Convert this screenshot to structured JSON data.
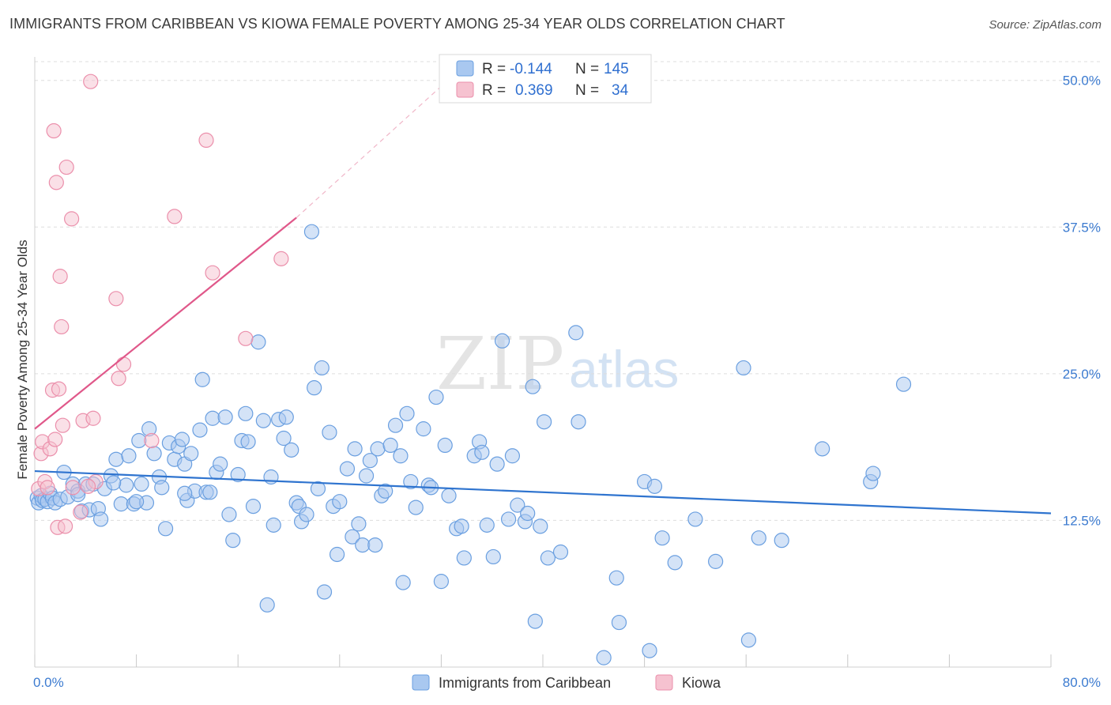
{
  "header": {
    "title": "IMMIGRANTS FROM CARIBBEAN VS KIOWA FEMALE POVERTY AMONG 25-34 YEAR OLDS CORRELATION CHART",
    "source": "Source: ZipAtlas.com"
  },
  "watermark": {
    "zip": "ZIP",
    "atlas": "atlas"
  },
  "colors": {
    "blue_fill": "#a9c8f0",
    "blue_stroke": "#6a9fe0",
    "blue_line": "#2f74cf",
    "pink_fill": "#f6c2d0",
    "pink_stroke": "#eb8fab",
    "pink_line": "#e0588a",
    "axis_text": "#3c7bd0",
    "grid": "#dddddd"
  },
  "legend": {
    "rows": [
      {
        "r_label": "R =",
        "r_value": "-0.144",
        "n_label": "N =",
        "n_value": "145"
      },
      {
        "r_label": "R =",
        "r_value": "0.369",
        "n_label": "N =",
        "n_value": "34"
      }
    ]
  },
  "chart_data": {
    "type": "scatter",
    "title": "IMMIGRANTS FROM CARIBBEAN VS KIOWA FEMALE POVERTY AMONG 25-34 YEAR OLDS CORRELATION CHART",
    "xlabel": "",
    "ylabel": "Female Poverty Among 25-34 Year Olds",
    "xlim": [
      0,
      80
    ],
    "ylim": [
      0,
      52
    ],
    "x_tick_labels": [
      {
        "value": 0,
        "label": "0.0%"
      },
      {
        "value": 80,
        "label": "80.0%"
      }
    ],
    "y_ticks": [
      {
        "value": 12.5,
        "label": "12.5%"
      },
      {
        "value": 25,
        "label": "25.0%"
      },
      {
        "value": 37.5,
        "label": "37.5%"
      },
      {
        "value": 50,
        "label": "50.0%"
      }
    ],
    "x_minor_ticks": [
      0,
      8,
      16,
      24,
      32,
      40,
      48,
      56,
      64,
      72,
      80
    ],
    "grid": true,
    "legend_position": "top-center",
    "series": [
      {
        "name": "Immigrants from Caribbean",
        "color": "blue",
        "r": -0.144,
        "n": 145,
        "trend": {
          "x": [
            0,
            80
          ],
          "y": [
            16.7,
            13.1
          ]
        },
        "points": [
          [
            0.2,
            14.4
          ],
          [
            0.3,
            14.0
          ],
          [
            0.5,
            14.6
          ],
          [
            0.6,
            14.2
          ],
          [
            0.8,
            14.3
          ],
          [
            1.0,
            14.1
          ],
          [
            1.2,
            14.8
          ],
          [
            1.4,
            14.4
          ],
          [
            1.6,
            14.0
          ],
          [
            2.0,
            14.3
          ],
          [
            2.3,
            16.6
          ],
          [
            2.6,
            14.5
          ],
          [
            3.0,
            15.6
          ],
          [
            3.4,
            15.0
          ],
          [
            3.7,
            13.3
          ],
          [
            4.0,
            15.6
          ],
          [
            4.3,
            13.4
          ],
          [
            4.6,
            15.6
          ],
          [
            5.0,
            13.5
          ],
          [
            5.2,
            12.6
          ],
          [
            5.5,
            15.2
          ],
          [
            6.0,
            16.3
          ],
          [
            6.4,
            17.7
          ],
          [
            6.8,
            13.9
          ],
          [
            7.2,
            15.5
          ],
          [
            7.4,
            18.0
          ],
          [
            7.8,
            13.9
          ],
          [
            8.2,
            19.3
          ],
          [
            8.4,
            15.6
          ],
          [
            8.8,
            14.0
          ],
          [
            9.0,
            20.3
          ],
          [
            9.4,
            18.2
          ],
          [
            9.8,
            16.2
          ],
          [
            10.0,
            15.3
          ],
          [
            10.3,
            11.8
          ],
          [
            10.6,
            19.1
          ],
          [
            11.0,
            17.7
          ],
          [
            11.3,
            18.8
          ],
          [
            11.6,
            19.4
          ],
          [
            11.8,
            17.3
          ],
          [
            12.0,
            14.2
          ],
          [
            12.3,
            18.2
          ],
          [
            12.6,
            15.0
          ],
          [
            13.0,
            20.2
          ],
          [
            13.2,
            24.5
          ],
          [
            13.5,
            14.9
          ],
          [
            13.8,
            14.9
          ],
          [
            14.0,
            21.2
          ],
          [
            14.3,
            16.6
          ],
          [
            14.6,
            17.3
          ],
          [
            15.0,
            21.3
          ],
          [
            15.3,
            13.0
          ],
          [
            15.6,
            10.8
          ],
          [
            16.0,
            16.4
          ],
          [
            16.3,
            19.3
          ],
          [
            16.6,
            21.6
          ],
          [
            16.8,
            19.2
          ],
          [
            17.2,
            13.7
          ],
          [
            17.6,
            27.7
          ],
          [
            18.0,
            21.0
          ],
          [
            18.3,
            5.3
          ],
          [
            18.6,
            16.2
          ],
          [
            18.8,
            12.1
          ],
          [
            19.2,
            21.1
          ],
          [
            19.6,
            19.5
          ],
          [
            19.8,
            21.3
          ],
          [
            20.2,
            18.5
          ],
          [
            20.6,
            14.0
          ],
          [
            20.8,
            13.7
          ],
          [
            21.0,
            12.4
          ],
          [
            21.4,
            13.0
          ],
          [
            21.8,
            37.1
          ],
          [
            22.0,
            23.8
          ],
          [
            22.3,
            15.2
          ],
          [
            22.6,
            25.5
          ],
          [
            22.8,
            6.4
          ],
          [
            23.2,
            20.0
          ],
          [
            23.5,
            13.7
          ],
          [
            23.8,
            9.6
          ],
          [
            24.0,
            14.1
          ],
          [
            24.6,
            16.9
          ],
          [
            25.0,
            11.1
          ],
          [
            25.2,
            18.6
          ],
          [
            25.5,
            12.2
          ],
          [
            25.8,
            10.4
          ],
          [
            26.1,
            16.3
          ],
          [
            26.4,
            17.6
          ],
          [
            26.8,
            10.4
          ],
          [
            27.0,
            18.6
          ],
          [
            27.3,
            14.6
          ],
          [
            27.6,
            15.0
          ],
          [
            28.0,
            18.9
          ],
          [
            28.4,
            20.6
          ],
          [
            28.8,
            18.0
          ],
          [
            29.0,
            7.2
          ],
          [
            29.3,
            21.6
          ],
          [
            29.6,
            15.8
          ],
          [
            30.0,
            13.6
          ],
          [
            30.6,
            20.3
          ],
          [
            31.0,
            15.5
          ],
          [
            31.2,
            15.3
          ],
          [
            31.6,
            23.0
          ],
          [
            32.0,
            7.3
          ],
          [
            32.3,
            18.9
          ],
          [
            32.6,
            14.6
          ],
          [
            33.2,
            11.8
          ],
          [
            33.6,
            12.0
          ],
          [
            33.8,
            9.3
          ],
          [
            34.6,
            18.0
          ],
          [
            35.0,
            19.2
          ],
          [
            35.2,
            18.3
          ],
          [
            35.6,
            12.1
          ],
          [
            36.1,
            9.4
          ],
          [
            36.4,
            17.3
          ],
          [
            36.8,
            27.8
          ],
          [
            37.3,
            12.6
          ],
          [
            37.6,
            18.0
          ],
          [
            38.0,
            13.8
          ],
          [
            38.6,
            12.4
          ],
          [
            38.8,
            13.1
          ],
          [
            39.2,
            23.9
          ],
          [
            39.4,
            3.9
          ],
          [
            39.8,
            12.0
          ],
          [
            40.1,
            20.9
          ],
          [
            40.4,
            9.3
          ],
          [
            41.4,
            9.8
          ],
          [
            42.6,
            28.5
          ],
          [
            42.8,
            20.9
          ],
          [
            45.8,
            7.6
          ],
          [
            46.0,
            3.8
          ],
          [
            48.0,
            15.8
          ],
          [
            48.4,
            1.4
          ],
          [
            48.8,
            15.4
          ],
          [
            49.4,
            11.0
          ],
          [
            50.4,
            8.9
          ],
          [
            52.0,
            12.6
          ],
          [
            53.6,
            9.0
          ],
          [
            55.8,
            25.5
          ],
          [
            56.2,
            2.3
          ],
          [
            57.0,
            11.0
          ],
          [
            58.8,
            10.8
          ],
          [
            62.0,
            18.6
          ],
          [
            65.8,
            15.8
          ],
          [
            66.0,
            16.5
          ],
          [
            68.4,
            24.1
          ],
          [
            44.8,
            0.8
          ],
          [
            11.8,
            14.8
          ],
          [
            8.0,
            14.1
          ],
          [
            6.2,
            15.7
          ],
          [
            3.4,
            14.7
          ]
        ]
      },
      {
        "name": "Kiowa",
        "color": "pink",
        "r": 0.369,
        "n": 34,
        "trend": {
          "x": [
            0,
            20.6
          ],
          "y": [
            20.3,
            38.3
          ],
          "dashed_to": {
            "x": 32,
            "y": 49.5
          }
        },
        "points": [
          [
            0.3,
            15.2
          ],
          [
            0.5,
            18.2
          ],
          [
            0.6,
            19.2
          ],
          [
            0.8,
            15.8
          ],
          [
            1.0,
            15.3
          ],
          [
            1.2,
            18.6
          ],
          [
            1.4,
            23.6
          ],
          [
            1.5,
            45.7
          ],
          [
            1.6,
            19.4
          ],
          [
            1.7,
            41.3
          ],
          [
            1.8,
            11.9
          ],
          [
            1.9,
            23.7
          ],
          [
            2.0,
            33.3
          ],
          [
            2.1,
            29.0
          ],
          [
            2.2,
            20.6
          ],
          [
            2.4,
            12.0
          ],
          [
            2.5,
            42.6
          ],
          [
            2.9,
            38.2
          ],
          [
            3.0,
            15.3
          ],
          [
            3.6,
            13.2
          ],
          [
            3.8,
            21.0
          ],
          [
            4.4,
            49.9
          ],
          [
            4.6,
            21.2
          ],
          [
            4.8,
            15.8
          ],
          [
            6.4,
            31.4
          ],
          [
            6.6,
            24.6
          ],
          [
            7.0,
            25.8
          ],
          [
            9.2,
            19.3
          ],
          [
            11.0,
            38.4
          ],
          [
            13.5,
            44.9
          ],
          [
            14.0,
            33.6
          ],
          [
            16.6,
            28.0
          ],
          [
            19.4,
            34.8
          ],
          [
            4.2,
            15.4
          ]
        ]
      }
    ]
  },
  "bottom_legend": {
    "items": [
      {
        "label": "Immigrants from Caribbean"
      },
      {
        "label": "Kiowa"
      }
    ]
  }
}
